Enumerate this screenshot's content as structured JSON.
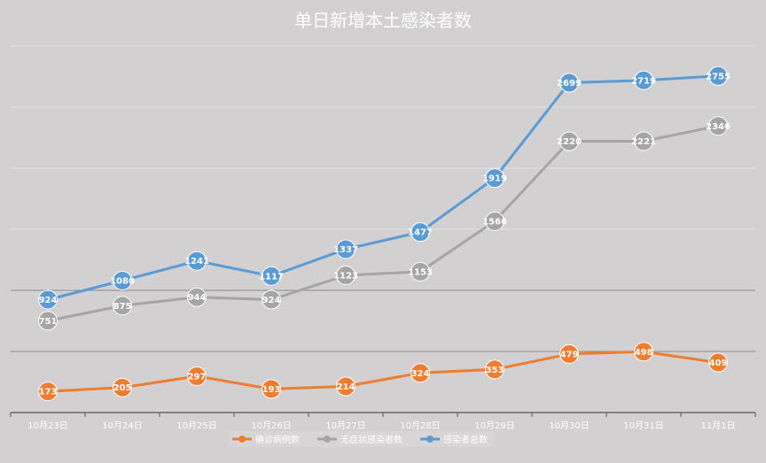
{
  "chart_data": {
    "type": "line",
    "title": "单日新增本土感染者数",
    "categories": [
      "10月23日",
      "10月24日",
      "10月25日",
      "10月26日",
      "10月27日",
      "10月28日",
      "10月29日",
      "10月30日",
      "10月31日",
      "11月1日"
    ],
    "ylim": [
      0,
      3000
    ],
    "grid": true,
    "legend_position": "bottom",
    "series": [
      {
        "name": "确诊病例数",
        "color": "#ee7d31",
        "values": [
          173,
          205,
          297,
          193,
          214,
          324,
          353,
          479,
          498,
          409
        ]
      },
      {
        "name": "无症状感染者数",
        "color": "#a5a5a5",
        "values": [
          751,
          875,
          944,
          924,
          1123,
          1153,
          1566,
          2220,
          2221,
          2346
        ]
      },
      {
        "name": "感染者总数",
        "color": "#5b9bd5",
        "values": [
          924,
          1080,
          1241,
          1117,
          1337,
          1477,
          1919,
          2699,
          2719,
          2755
        ]
      }
    ]
  }
}
